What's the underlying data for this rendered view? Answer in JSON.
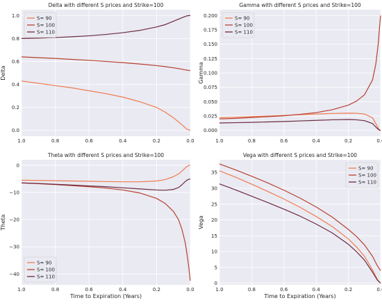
{
  "chart_data": [
    {
      "type": "line",
      "title": "Delta with different S prices and Strike=100",
      "xlabel": "",
      "ylabel": "Delta",
      "xlim": [
        1.0,
        0.0
      ],
      "ylim": [
        -0.05,
        1.05
      ],
      "xticks": [
        1.0,
        0.8,
        0.6,
        0.4,
        0.2,
        0.0
      ],
      "xtick_labels": [
        "1.0",
        "0.8",
        "0.6",
        "0.4",
        "0.2",
        "0.0"
      ],
      "yticks": [
        0.0,
        0.2,
        0.4,
        0.6,
        0.8,
        1.0
      ],
      "ytick_labels": [
        "0.0",
        "0.2",
        "0.4",
        "0.6",
        "0.8",
        "1.0"
      ],
      "grid": true,
      "legend": "top-left",
      "x": [
        1.0,
        0.9,
        0.8,
        0.7,
        0.6,
        0.5,
        0.4,
        0.3,
        0.2,
        0.15,
        0.1,
        0.05,
        0.02,
        0.0
      ],
      "series": [
        {
          "name": "S= 90",
          "values": [
            0.43,
            0.41,
            0.39,
            0.37,
            0.345,
            0.32,
            0.29,
            0.25,
            0.2,
            0.16,
            0.11,
            0.05,
            0.01,
            0.0
          ]
        },
        {
          "name": "S= 100",
          "values": [
            0.64,
            0.633,
            0.626,
            0.618,
            0.61,
            0.6,
            0.59,
            0.578,
            0.564,
            0.555,
            0.545,
            0.533,
            0.524,
            0.52
          ]
        },
        {
          "name": "S= 110",
          "values": [
            0.8,
            0.803,
            0.808,
            0.815,
            0.823,
            0.835,
            0.85,
            0.87,
            0.9,
            0.92,
            0.95,
            0.98,
            0.997,
            1.0
          ]
        }
      ]
    },
    {
      "type": "line",
      "title": "Gamma with different S prices and Strike=100",
      "xlabel": "",
      "ylabel": "Gamma",
      "xlim": [
        1.0,
        0.0
      ],
      "ylim": [
        -0.01,
        0.21
      ],
      "xticks": [
        1.0,
        0.8,
        0.6,
        0.4,
        0.2,
        0.0
      ],
      "xtick_labels": [
        "1.0",
        "0.8",
        "0.6",
        "0.4",
        "0.2",
        "0.0"
      ],
      "yticks": [
        0.0,
        0.025,
        0.05,
        0.075,
        0.1,
        0.125,
        0.15,
        0.175,
        0.2
      ],
      "ytick_labels": [
        "0.000",
        "0.025",
        "0.050",
        "0.075",
        "0.100",
        "0.125",
        "0.150",
        "0.175",
        "0.200"
      ],
      "grid": true,
      "legend": "top-left",
      "x": [
        1.0,
        0.9,
        0.8,
        0.7,
        0.6,
        0.5,
        0.4,
        0.3,
        0.2,
        0.15,
        0.1,
        0.05,
        0.03,
        0.015,
        0.005,
        0.0
      ],
      "series": [
        {
          "name": "S= 90",
          "values": [
            0.022,
            0.023,
            0.024,
            0.025,
            0.026,
            0.0275,
            0.0285,
            0.0295,
            0.03,
            0.0298,
            0.0285,
            0.022,
            0.012,
            0.004,
            0.0005,
            0.0
          ]
        },
        {
          "name": "S= 100",
          "values": [
            0.02,
            0.021,
            0.0225,
            0.024,
            0.0255,
            0.028,
            0.031,
            0.036,
            0.044,
            0.051,
            0.062,
            0.088,
            0.115,
            0.15,
            0.185,
            0.2
          ]
        },
        {
          "name": "S= 110",
          "values": [
            0.013,
            0.0135,
            0.014,
            0.0148,
            0.0155,
            0.0165,
            0.0175,
            0.0185,
            0.019,
            0.0185,
            0.017,
            0.012,
            0.006,
            0.002,
            0.0003,
            0.0
          ]
        }
      ]
    },
    {
      "type": "line",
      "title": "Theta with different S prices and Strike=100",
      "xlabel": "Time to Expiration (Years)",
      "ylabel": "Theta",
      "xlim": [
        1.0,
        0.0
      ],
      "ylim": [
        -44,
        2
      ],
      "xticks": [
        1.0,
        0.8,
        0.6,
        0.4,
        0.2,
        0.0
      ],
      "xtick_labels": [
        "1.0",
        "0.8",
        "0.6",
        "0.4",
        "0.2",
        "0.0"
      ],
      "yticks": [
        0,
        -10,
        -20,
        -30,
        -40
      ],
      "ytick_labels": [
        "0",
        "−10",
        "−20",
        "−30",
        "−40"
      ],
      "grid": true,
      "legend": "bottom-left",
      "x": [
        1.0,
        0.9,
        0.8,
        0.7,
        0.6,
        0.5,
        0.4,
        0.3,
        0.2,
        0.15,
        0.1,
        0.07,
        0.05,
        0.03,
        0.02,
        0.01,
        0.0
      ],
      "series": [
        {
          "name": "S= 90",
          "values": [
            -5.5,
            -5.6,
            -5.7,
            -5.8,
            -5.9,
            -6.0,
            -6.1,
            -6.1,
            -5.8,
            -5.3,
            -4.2,
            -3.2,
            -2.2,
            -1.0,
            -0.5,
            -0.1,
            0.0
          ]
        },
        {
          "name": "S= 100",
          "values": [
            -6.5,
            -6.8,
            -7.1,
            -7.5,
            -7.9,
            -8.4,
            -9.1,
            -10.2,
            -12.2,
            -14.0,
            -17.0,
            -20.0,
            -23.5,
            -28.5,
            -32.5,
            -37.0,
            -42.5
          ]
        },
        {
          "name": "S= 110",
          "values": [
            -6.5,
            -6.7,
            -7.0,
            -7.3,
            -7.6,
            -7.9,
            -8.3,
            -8.7,
            -9.1,
            -9.2,
            -8.9,
            -8.2,
            -7.2,
            -6.0,
            -5.5,
            -5.2,
            -5.0
          ]
        }
      ]
    },
    {
      "type": "line",
      "title": "Vega with different S prices and Strike=100",
      "xlabel": "Time to Expiration (Years)",
      "ylabel": "Vega",
      "xlim": [
        1.0,
        0.0
      ],
      "ylim": [
        -0.5,
        39
      ],
      "xticks": [
        1.0,
        0.8,
        0.6,
        0.4,
        0.2,
        0.0
      ],
      "xtick_labels": [
        "1.0",
        "0.8",
        "0.6",
        "0.4",
        "0.2",
        "0.0"
      ],
      "yticks": [
        0,
        5,
        10,
        15,
        20,
        25,
        30,
        35
      ],
      "ytick_labels": [
        "0",
        "5",
        "10",
        "15",
        "20",
        "25",
        "30",
        "35"
      ],
      "grid": true,
      "legend": "top-right",
      "x": [
        1.0,
        0.9,
        0.8,
        0.7,
        0.6,
        0.5,
        0.4,
        0.3,
        0.2,
        0.15,
        0.1,
        0.05,
        0.02,
        0.0
      ],
      "series": [
        {
          "name": "S= 90",
          "values": [
            35.5,
            33.5,
            31.3,
            29.0,
            26.6,
            24.0,
            21.1,
            17.9,
            14.0,
            11.5,
            8.5,
            4.2,
            1.2,
            0.0
          ]
        },
        {
          "name": "S= 100",
          "values": [
            37.7,
            35.8,
            33.8,
            31.7,
            29.4,
            26.9,
            24.1,
            20.9,
            17.0,
            14.8,
            12.1,
            8.5,
            5.5,
            4.0
          ]
        },
        {
          "name": "S= 110",
          "values": [
            31.4,
            29.5,
            27.5,
            25.5,
            23.4,
            21.2,
            18.7,
            15.9,
            12.3,
            10.0,
            7.3,
            3.5,
            1.0,
            0.0
          ]
        }
      ]
    }
  ],
  "colors": {
    "series": [
      "#ef7b4f",
      "#b5402f",
      "#6b2a3e"
    ],
    "plot_background": "#eaeaf2",
    "grid": "#ffffff"
  }
}
